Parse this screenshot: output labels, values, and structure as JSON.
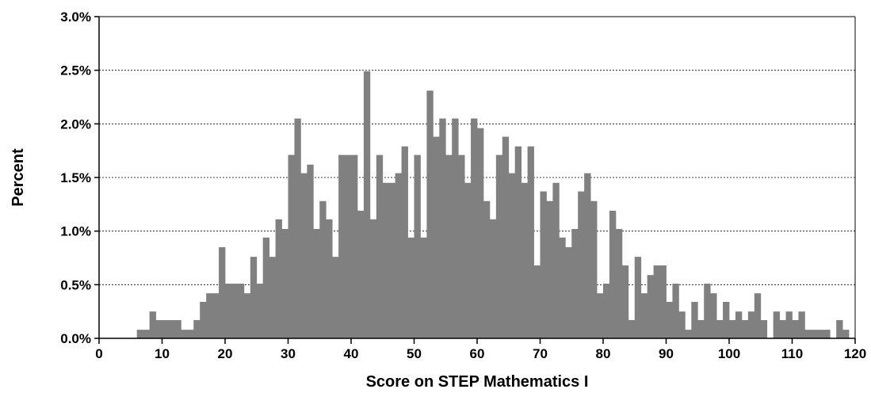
{
  "chart_data": {
    "type": "bar",
    "xlabel": "Score on STEP Mathematics I",
    "ylabel": "Percent",
    "xlim": [
      0,
      120
    ],
    "ylim": [
      0,
      0.03
    ],
    "x_ticks": [
      "0",
      "10",
      "20",
      "30",
      "40",
      "50",
      "60",
      "70",
      "80",
      "90",
      "100",
      "110",
      "120"
    ],
    "y_ticks": [
      "0.0%",
      "0.5%",
      "1.0%",
      "1.5%",
      "2.0%",
      "2.5%",
      "3.0%"
    ],
    "grid": "horizontal dashed",
    "bar_color": "#808080",
    "x": [
      0,
      1,
      2,
      3,
      4,
      5,
      6,
      7,
      8,
      9,
      10,
      11,
      12,
      13,
      14,
      15,
      16,
      17,
      18,
      19,
      20,
      21,
      22,
      23,
      24,
      25,
      26,
      27,
      28,
      29,
      30,
      31,
      32,
      33,
      34,
      35,
      36,
      37,
      38,
      39,
      40,
      41,
      42,
      43,
      44,
      45,
      46,
      47,
      48,
      49,
      50,
      51,
      52,
      53,
      54,
      55,
      56,
      57,
      58,
      59,
      60,
      61,
      62,
      63,
      64,
      65,
      66,
      67,
      68,
      69,
      70,
      71,
      72,
      73,
      74,
      75,
      76,
      77,
      78,
      79,
      80,
      81,
      82,
      83,
      84,
      85,
      86,
      87,
      88,
      89,
      90,
      91,
      92,
      93,
      94,
      95,
      96,
      97,
      98,
      99,
      100,
      101,
      102,
      103,
      104,
      105,
      106,
      107,
      108,
      109,
      110,
      111,
      112,
      113,
      114,
      115,
      116,
      117,
      118,
      119
    ],
    "values": [
      0.0,
      0.0,
      0.0,
      0.0,
      0.0,
      0.0,
      0.08,
      0.08,
      0.25,
      0.17,
      0.17,
      0.17,
      0.17,
      0.08,
      0.08,
      0.17,
      0.34,
      0.42,
      0.42,
      0.85,
      0.51,
      0.51,
      0.51,
      0.42,
      0.76,
      0.51,
      0.94,
      0.76,
      1.11,
      1.02,
      1.71,
      2.05,
      1.54,
      1.62,
      1.02,
      1.28,
      1.11,
      0.76,
      1.71,
      1.71,
      1.71,
      1.19,
      2.49,
      1.11,
      1.71,
      1.45,
      1.45,
      1.54,
      1.79,
      0.94,
      1.71,
      0.94,
      2.31,
      1.88,
      2.05,
      1.71,
      2.05,
      1.71,
      1.45,
      2.05,
      1.96,
      1.28,
      1.11,
      1.71,
      1.88,
      1.54,
      1.79,
      1.45,
      1.79,
      0.68,
      1.37,
      1.28,
      1.45,
      0.94,
      0.85,
      1.02,
      1.37,
      1.54,
      1.28,
      0.42,
      0.51,
      1.19,
      1.02,
      0.68,
      0.17,
      0.76,
      0.42,
      0.59,
      0.68,
      0.68,
      0.34,
      0.51,
      0.25,
      0.08,
      0.34,
      0.17,
      0.51,
      0.42,
      0.17,
      0.34,
      0.17,
      0.25,
      0.17,
      0.25,
      0.42,
      0.17,
      0.0,
      0.25,
      0.17,
      0.25,
      0.17,
      0.25,
      0.08,
      0.08,
      0.08,
      0.08,
      0.0,
      0.17,
      0.08,
      0.0
    ]
  }
}
